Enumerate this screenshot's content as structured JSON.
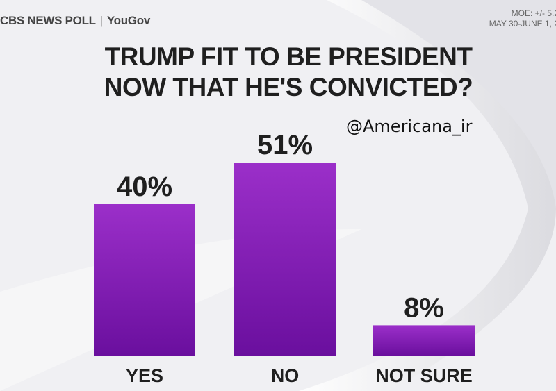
{
  "header": {
    "source_left": "CBS NEWS POLL",
    "source_right": "YouGov",
    "moe": "MOE: +/- 5.2",
    "dates": "MAY 30-JUNE 1, 2"
  },
  "watermark": "@Americana_ir",
  "colors": {
    "bar_top": "#9b2fc9",
    "bar_bottom": "#6a0f9e",
    "text": "#1f1f1f"
  },
  "chart_data": {
    "type": "bar",
    "title": "TRUMP FIT TO BE PRESIDENT\nNOW THAT HE'S CONVICTED?",
    "categories": [
      "YES",
      "NO",
      "NOT SURE"
    ],
    "values": [
      40,
      51,
      8
    ],
    "value_labels": [
      "40%",
      "51%",
      "8%"
    ],
    "ylim": [
      0,
      55
    ],
    "grid": false,
    "legend": "none"
  }
}
